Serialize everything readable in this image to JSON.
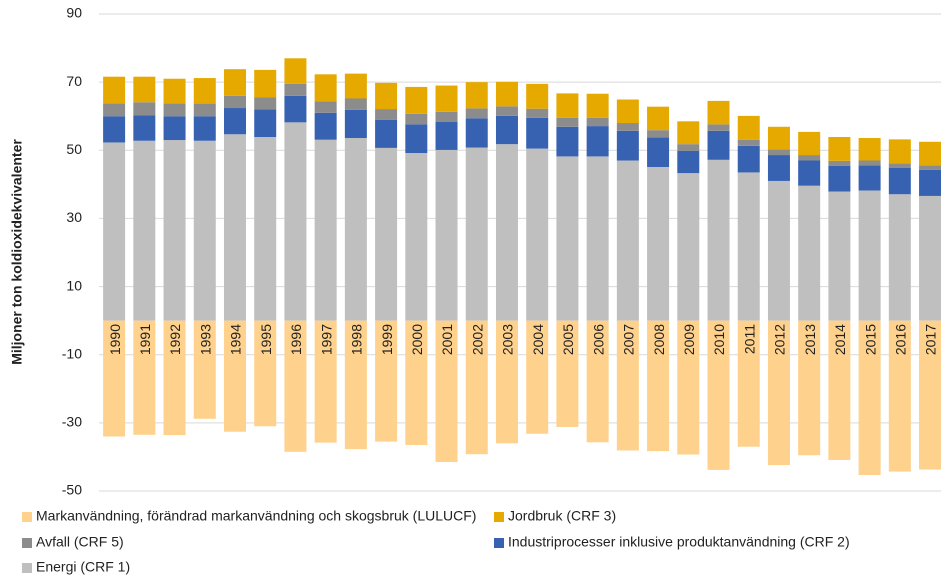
{
  "chart_data": {
    "type": "stacked_bar",
    "ylabel": "Miljoner ton koldioxidekvivalenter",
    "categories": [
      "1990",
      "1991",
      "1992",
      "1993",
      "1994",
      "1995",
      "1996",
      "1997",
      "1998",
      "1999",
      "2000",
      "2001",
      "2002",
      "2003",
      "2004",
      "2005",
      "2006",
      "2007",
      "2008",
      "2009",
      "2010",
      "2011",
      "2012",
      "2013",
      "2014",
      "2015",
      "2016",
      "2017"
    ],
    "series": [
      {
        "name": "Markanvändning, förändrad markanvändning och skogsbruk (LULUCF)",
        "color": "#fed18c",
        "values": [
          -34,
          -33.5,
          -33.6,
          -28.8,
          -32.6,
          -31,
          -38.5,
          -35.8,
          -37.7,
          -35.5,
          -36.5,
          -41.5,
          -39.2,
          -36,
          -33.2,
          -31.2,
          -35.7,
          -38.1,
          -38.3,
          -39.3,
          -43.8,
          -37,
          -42.4,
          -39.5,
          -40.9,
          -45.3,
          -44.3,
          -43.7
        ]
      },
      {
        "name": "Jordbruk (CRF 3)",
        "color": "#e5a900",
        "values": [
          7.8,
          7.5,
          7.2,
          7.5,
          7.8,
          8.1,
          7.5,
          7.9,
          7.3,
          7.7,
          7.9,
          7.7,
          7.7,
          7.2,
          7.3,
          7.2,
          7.1,
          6.9,
          6.9,
          6.7,
          6.9,
          7,
          6.6,
          6.8,
          7,
          6.6,
          7,
          6.9
        ]
      },
      {
        "name": "Avfall (CRF 5)",
        "color": "#8c8c8c",
        "values": [
          3.8,
          3.8,
          3.8,
          3.7,
          3.6,
          3.5,
          3.5,
          3.4,
          3.3,
          3.2,
          3.1,
          3,
          2.9,
          2.8,
          2.7,
          2.6,
          2.4,
          2.3,
          2.1,
          2,
          1.9,
          1.8,
          1.7,
          1.6,
          1.5,
          1.4,
          1.3,
          1.3
        ]
      },
      {
        "name": "Industriprocesser inklusive produktanvändning (CRF 2)",
        "color": "#3762b2",
        "values": [
          7.7,
          7.5,
          7,
          7.2,
          7.7,
          8.1,
          7.8,
          7.9,
          8.3,
          8.2,
          8.4,
          8.2,
          8.6,
          8.3,
          9,
          8.7,
          8.9,
          8.7,
          8.7,
          6.5,
          8.5,
          7.8,
          7.6,
          7.4,
          7.5,
          7.4,
          7.8,
          7.7
        ]
      },
      {
        "name": "Energi (CRF 1)",
        "color": "#bfbfbf",
        "values": [
          52.3,
          52.8,
          53,
          52.8,
          54.7,
          53.9,
          58.2,
          53.1,
          53.6,
          50.7,
          49.2,
          50.1,
          50.8,
          51.8,
          50.5,
          48.2,
          48.2,
          47,
          45.1,
          43.3,
          47.2,
          43.5,
          41,
          39.6,
          37.9,
          38.2,
          37.1,
          36.6
        ]
      }
    ],
    "ylim": [
      -50,
      90
    ],
    "yticks": [
      90,
      70,
      50,
      30,
      10,
      -10,
      -30,
      -50
    ],
    "grid": true
  }
}
